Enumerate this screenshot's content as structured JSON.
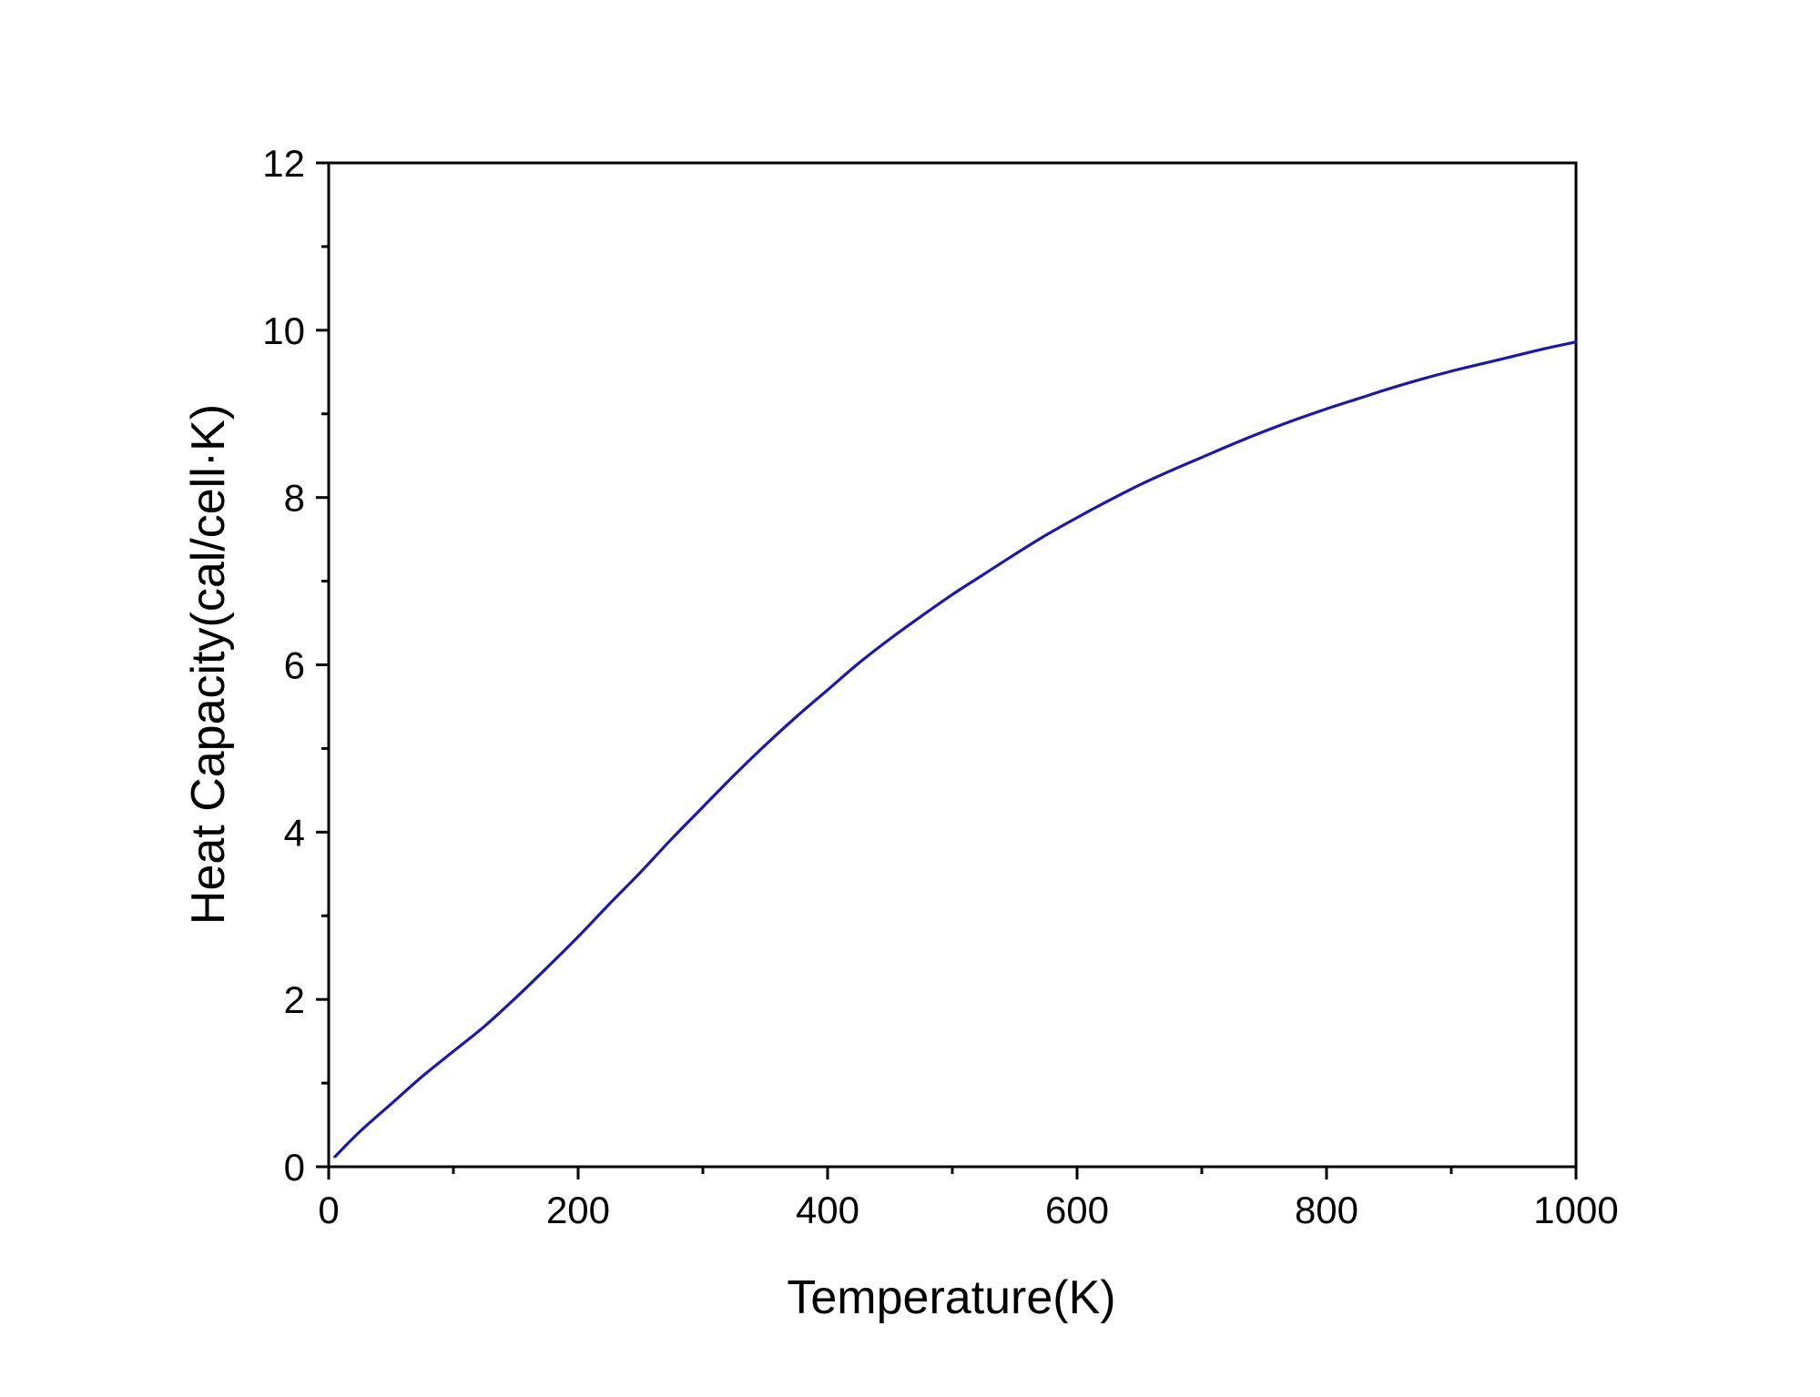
{
  "chart_data": {
    "type": "line",
    "title": "",
    "xlabel": "Temperature(K)",
    "ylabel": "Heat Capacity(cal/cell·K)",
    "xlim": [
      0,
      1000
    ],
    "ylim": [
      0,
      12
    ],
    "x_major_ticks": [
      0,
      200,
      400,
      600,
      800,
      1000
    ],
    "x_minor_ticks": [
      100,
      300,
      500,
      700,
      900
    ],
    "y_major_ticks": [
      0,
      2,
      4,
      6,
      8,
      10,
      12
    ],
    "y_minor_ticks": [
      1,
      3,
      5,
      7,
      9,
      11
    ],
    "x_tick_labels": [
      "0",
      "200",
      "400",
      "600",
      "800",
      "1000"
    ],
    "y_tick_labels": [
      "0",
      "2",
      "4",
      "6",
      "8",
      "10",
      "12"
    ],
    "grid": false,
    "legend": "none",
    "series": [
      {
        "color": "#1a1aa8",
        "x": [
          5,
          25,
          50,
          75,
          100,
          125,
          150,
          175,
          200,
          225,
          250,
          275,
          300,
          325,
          350,
          375,
          400,
          425,
          450,
          475,
          500,
          525,
          550,
          575,
          600,
          625,
          650,
          675,
          700,
          725,
          750,
          775,
          800,
          825,
          850,
          875,
          900,
          925,
          950,
          975,
          1000
        ],
        "y": [
          0.12,
          0.42,
          0.75,
          1.08,
          1.38,
          1.68,
          2.02,
          2.38,
          2.75,
          3.14,
          3.52,
          3.92,
          4.3,
          4.68,
          5.04,
          5.38,
          5.7,
          6.02,
          6.31,
          6.58,
          6.84,
          7.08,
          7.32,
          7.55,
          7.76,
          7.96,
          8.15,
          8.32,
          8.48,
          8.64,
          8.79,
          8.93,
          9.06,
          9.18,
          9.3,
          9.41,
          9.51,
          9.6,
          9.69,
          9.78,
          9.86
        ]
      }
    ]
  }
}
